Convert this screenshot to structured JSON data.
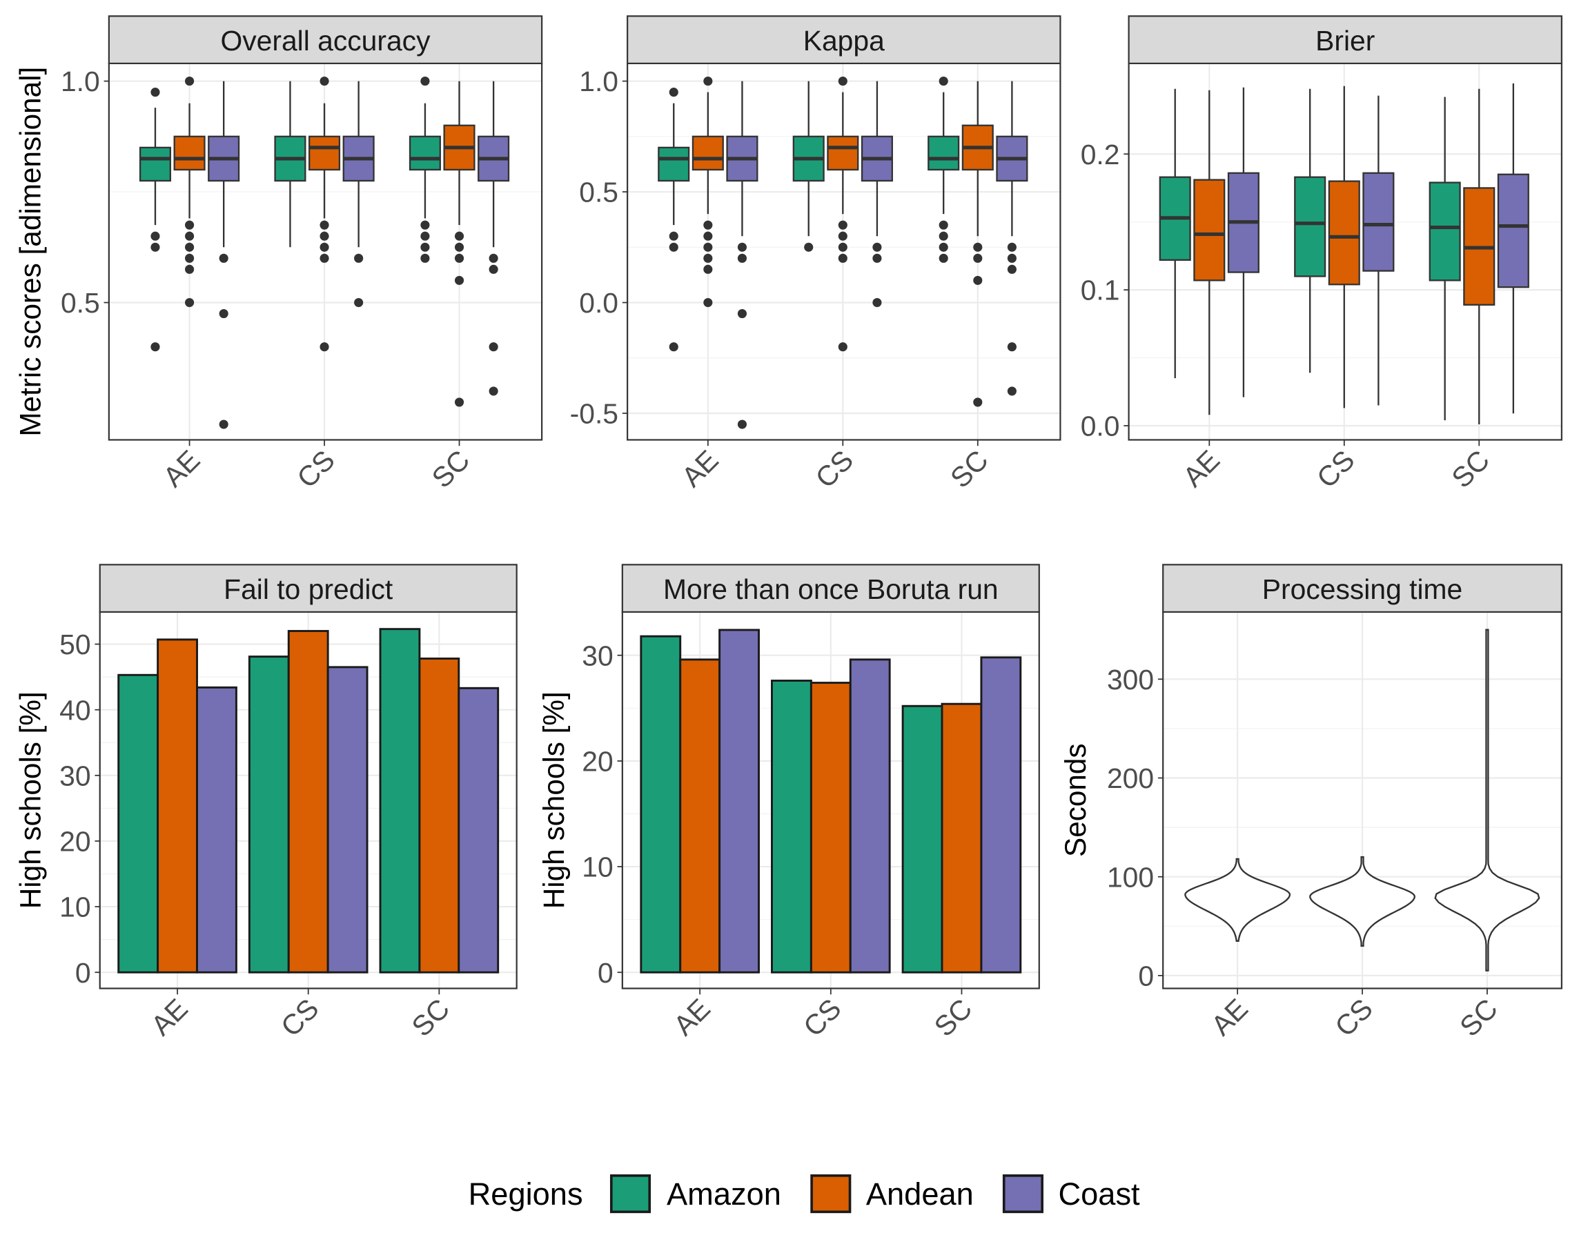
{
  "colors": {
    "Amazon": "#1b9e77",
    "Andean": "#d95f02",
    "Coast": "#7570b3"
  },
  "legend": {
    "title": "Regions",
    "entries": [
      "Amazon",
      "Andean",
      "Coast"
    ]
  },
  "chart_data": [
    {
      "type": "boxplot",
      "title": "Overall accuracy",
      "ylabel": "Metric scores [adimensional]",
      "categories": [
        "AE",
        "CS",
        "SC"
      ],
      "ylim": [
        0.19,
        1.04
      ],
      "yticks": [
        0.5,
        1.0
      ],
      "ytick_labels": [
        "0.5",
        "1.0"
      ],
      "series": [
        {
          "name": "Amazon",
          "boxes": [
            {
              "lo": 0.675,
              "q1": 0.775,
              "med": 0.825,
              "q3": 0.85,
              "hi": 0.94,
              "outliers": [
                0.975,
                0.65,
                0.625,
                0.4
              ]
            },
            {
              "lo": 0.625,
              "q1": 0.775,
              "med": 0.825,
              "q3": 0.875,
              "hi": 1.0,
              "outliers": []
            },
            {
              "lo": 0.69,
              "q1": 0.8,
              "med": 0.825,
              "q3": 0.875,
              "hi": 0.95,
              "outliers": [
                1.0,
                0.675,
                0.65,
                0.625,
                0.6
              ]
            }
          ]
        },
        {
          "name": "Andean",
          "boxes": [
            {
              "lo": 0.69,
              "q1": 0.8,
              "med": 0.825,
              "q3": 0.875,
              "hi": 0.95,
              "outliers": [
                1.0,
                0.675,
                0.65,
                0.625,
                0.6,
                0.575,
                0.5
              ]
            },
            {
              "lo": 0.69,
              "q1": 0.8,
              "med": 0.85,
              "q3": 0.875,
              "hi": 0.95,
              "outliers": [
                1.0,
                0.675,
                0.65,
                0.625,
                0.6,
                0.4
              ]
            },
            {
              "lo": 0.675,
              "q1": 0.8,
              "med": 0.85,
              "q3": 0.9,
              "hi": 1.0,
              "outliers": [
                0.65,
                0.625,
                0.6,
                0.55,
                0.275
              ]
            }
          ]
        },
        {
          "name": "Coast",
          "boxes": [
            {
              "lo": 0.625,
              "q1": 0.775,
              "med": 0.825,
              "q3": 0.875,
              "hi": 1.0,
              "outliers": [
                0.6,
                0.475,
                0.225
              ]
            },
            {
              "lo": 0.625,
              "q1": 0.775,
              "med": 0.825,
              "q3": 0.875,
              "hi": 1.0,
              "outliers": [
                0.6,
                0.5
              ]
            },
            {
              "lo": 0.625,
              "q1": 0.775,
              "med": 0.825,
              "q3": 0.875,
              "hi": 1.0,
              "outliers": [
                0.6,
                0.575,
                0.4,
                0.3
              ]
            }
          ]
        }
      ]
    },
    {
      "type": "boxplot",
      "title": "Kappa",
      "ylabel": "",
      "categories": [
        "AE",
        "CS",
        "SC"
      ],
      "ylim": [
        -0.62,
        1.08
      ],
      "yticks": [
        -0.5,
        0.0,
        0.5,
        1.0
      ],
      "ytick_labels": [
        "-0.5",
        "0.0",
        "0.5",
        "1.0"
      ],
      "series": [
        {
          "name": "Amazon",
          "boxes": [
            {
              "lo": 0.35,
              "q1": 0.55,
              "med": 0.65,
              "q3": 0.7,
              "hi": 0.9,
              "outliers": [
                0.95,
                0.3,
                0.25,
                -0.2
              ]
            },
            {
              "lo": 0.3,
              "q1": 0.55,
              "med": 0.65,
              "q3": 0.75,
              "hi": 1.0,
              "outliers": [
                0.25
              ]
            },
            {
              "lo": 0.4,
              "q1": 0.6,
              "med": 0.65,
              "q3": 0.75,
              "hi": 0.95,
              "outliers": [
                1.0,
                0.35,
                0.3,
                0.25,
                0.2
              ]
            }
          ]
        },
        {
          "name": "Andean",
          "boxes": [
            {
              "lo": 0.4,
              "q1": 0.6,
              "med": 0.65,
              "q3": 0.75,
              "hi": 0.95,
              "outliers": [
                1.0,
                0.35,
                0.3,
                0.25,
                0.2,
                0.15,
                0.0
              ]
            },
            {
              "lo": 0.4,
              "q1": 0.6,
              "med": 0.7,
              "q3": 0.75,
              "hi": 0.95,
              "outliers": [
                1.0,
                0.35,
                0.3,
                0.25,
                0.2,
                -0.2
              ]
            },
            {
              "lo": 0.3,
              "q1": 0.6,
              "med": 0.7,
              "q3": 0.8,
              "hi": 1.0,
              "outliers": [
                0.25,
                0.2,
                0.1,
                -0.45
              ]
            }
          ]
        },
        {
          "name": "Coast",
          "boxes": [
            {
              "lo": 0.3,
              "q1": 0.55,
              "med": 0.65,
              "q3": 0.75,
              "hi": 1.0,
              "outliers": [
                0.25,
                0.2,
                -0.05,
                -0.55
              ]
            },
            {
              "lo": 0.3,
              "q1": 0.55,
              "med": 0.65,
              "q3": 0.75,
              "hi": 1.0,
              "outliers": [
                0.25,
                0.2,
                0.0
              ]
            },
            {
              "lo": 0.3,
              "q1": 0.55,
              "med": 0.65,
              "q3": 0.75,
              "hi": 1.0,
              "outliers": [
                0.25,
                0.2,
                0.15,
                -0.2,
                -0.4
              ]
            }
          ]
        }
      ]
    },
    {
      "type": "boxplot",
      "title": "Brier",
      "ylabel": "",
      "categories": [
        "AE",
        "CS",
        "SC"
      ],
      "ylim": [
        -0.0104,
        0.2667
      ],
      "yticks": [
        0.0,
        0.1,
        0.2
      ],
      "ytick_labels": [
        "0.0",
        "0.1",
        "0.2"
      ],
      "series": [
        {
          "name": "Amazon",
          "boxes": [
            {
              "lo": 0.035,
              "q1": 0.122,
              "med": 0.153,
              "q3": 0.183,
              "hi": 0.248,
              "outliers": []
            },
            {
              "lo": 0.039,
              "q1": 0.11,
              "med": 0.149,
              "q3": 0.183,
              "hi": 0.248,
              "outliers": []
            },
            {
              "lo": 0.004,
              "q1": 0.107,
              "med": 0.146,
              "q3": 0.179,
              "hi": 0.242,
              "outliers": []
            }
          ]
        },
        {
          "name": "Andean",
          "boxes": [
            {
              "lo": 0.008,
              "q1": 0.107,
              "med": 0.141,
              "q3": 0.181,
              "hi": 0.247,
              "outliers": []
            },
            {
              "lo": 0.013,
              "q1": 0.104,
              "med": 0.139,
              "q3": 0.18,
              "hi": 0.25,
              "outliers": []
            },
            {
              "lo": 0.001,
              "q1": 0.089,
              "med": 0.131,
              "q3": 0.175,
              "hi": 0.248,
              "outliers": []
            }
          ]
        },
        {
          "name": "Coast",
          "boxes": [
            {
              "lo": 0.021,
              "q1": 0.113,
              "med": 0.15,
              "q3": 0.186,
              "hi": 0.249,
              "outliers": []
            },
            {
              "lo": 0.015,
              "q1": 0.114,
              "med": 0.148,
              "q3": 0.186,
              "hi": 0.243,
              "outliers": []
            },
            {
              "lo": 0.009,
              "q1": 0.102,
              "med": 0.147,
              "q3": 0.185,
              "hi": 0.252,
              "outliers": []
            }
          ]
        }
      ]
    },
    {
      "type": "bar",
      "title": "Fail to predict",
      "ylabel": "High schools [%]",
      "categories": [
        "AE",
        "CS",
        "SC"
      ],
      "ylim": [
        -2.45,
        54.9
      ],
      "yticks": [
        0,
        10,
        20,
        30,
        40,
        50
      ],
      "ytick_labels": [
        "0",
        "10",
        "20",
        "30",
        "40",
        "50"
      ],
      "series": [
        {
          "name": "Amazon",
          "values": [
            45.3,
            48.1,
            52.3
          ]
        },
        {
          "name": "Andean",
          "values": [
            50.7,
            52.0,
            47.8
          ]
        },
        {
          "name": "Coast",
          "values": [
            43.4,
            46.5,
            43.3
          ]
        }
      ]
    },
    {
      "type": "bar",
      "title": "More than once Boruta run",
      "ylabel": "High schools [%]",
      "categories": [
        "AE",
        "CS",
        "SC"
      ],
      "ylim": [
        -1.52,
        34.1
      ],
      "yticks": [
        0,
        10,
        20,
        30
      ],
      "ytick_labels": [
        "0",
        "10",
        "20",
        "30"
      ],
      "series": [
        {
          "name": "Amazon",
          "values": [
            31.8,
            27.6,
            25.2
          ]
        },
        {
          "name": "Andean",
          "values": [
            29.6,
            27.4,
            25.4
          ]
        },
        {
          "name": "Coast",
          "values": [
            32.4,
            29.6,
            29.8
          ]
        }
      ]
    },
    {
      "type": "violin",
      "title": "Processing time",
      "ylabel": "Seconds",
      "categories": [
        "AE",
        "CS",
        "SC"
      ],
      "ylim": [
        -13,
        368
      ],
      "yticks": [
        0,
        100,
        200,
        300
      ],
      "ytick_labels": [
        "0",
        "100",
        "200",
        "300"
      ],
      "violins": [
        {
          "min": 35,
          "max": 118,
          "mode": 82
        },
        {
          "min": 30,
          "max": 120,
          "mode": 80
        },
        {
          "min": 5,
          "max": 350,
          "mode": 80
        }
      ]
    }
  ]
}
